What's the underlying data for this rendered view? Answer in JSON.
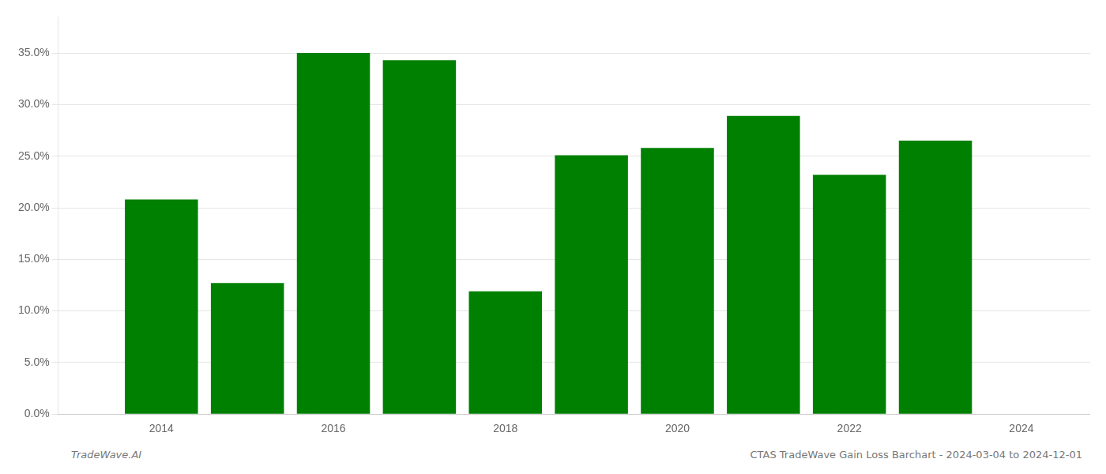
{
  "chart_data": {
    "type": "bar",
    "x": [
      2014,
      2015,
      2016,
      2017,
      2018,
      2019,
      2020,
      2021,
      2022,
      2023
    ],
    "values": [
      0.208,
      0.127,
      0.35,
      0.343,
      0.119,
      0.251,
      0.258,
      0.289,
      0.232,
      0.265
    ],
    "color": "#008000",
    "xlim": [
      2012.8,
      2024.8
    ],
    "xticks": [
      2014,
      2016,
      2018,
      2020,
      2022,
      2024
    ],
    "ylim": [
      0.0,
      0.385
    ],
    "yticks": [
      {
        "value": 0.0,
        "label": "0.0%"
      },
      {
        "value": 0.05,
        "label": "5.0%"
      },
      {
        "value": 0.1,
        "label": "10.0%"
      },
      {
        "value": 0.15,
        "label": "15.0%"
      },
      {
        "value": 0.2,
        "label": "20.0%"
      },
      {
        "value": 0.25,
        "label": "25.0%"
      },
      {
        "value": 0.3,
        "label": "30.0%"
      },
      {
        "value": 0.35,
        "label": "35.0%"
      }
    ],
    "grid": "y",
    "annotations": [
      "TradeWave.AI",
      "CTAS TradeWave Gain Loss Barchart - 2024-03-04 to 2024-12-01"
    ]
  }
}
